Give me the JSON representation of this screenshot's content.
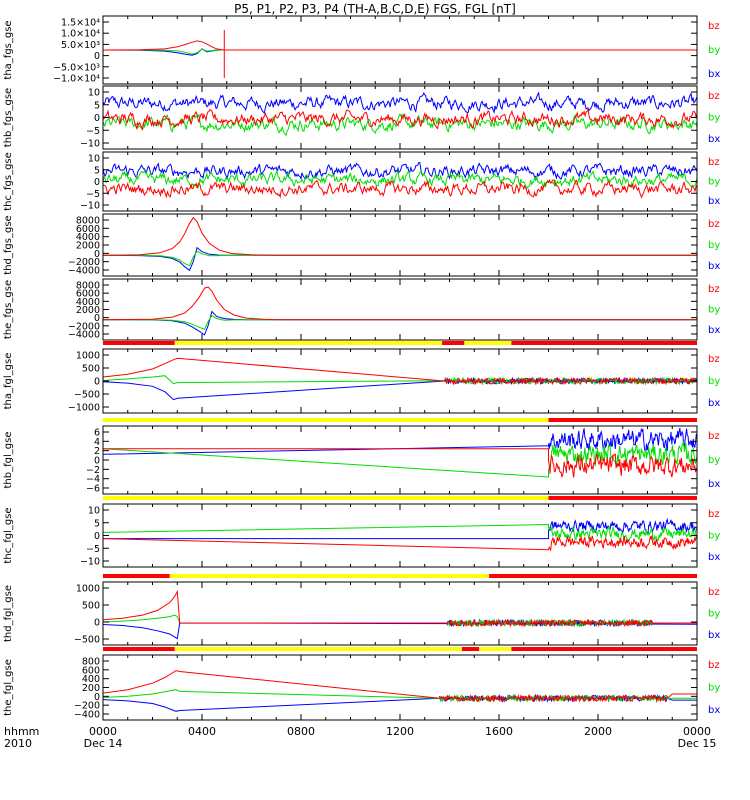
{
  "header": {
    "title": "P5, P1, P2, P3, P4 (TH-A,B,C,D,E) FGS, FGL [nT]"
  },
  "time_axis": {
    "ticks": [
      {
        "value": "0000",
        "sub": "Dec 14"
      },
      {
        "value": "0400",
        "sub": ""
      },
      {
        "value": "0800",
        "sub": ""
      },
      {
        "value": "1200",
        "sub": ""
      },
      {
        "value": "1600",
        "sub": ""
      },
      {
        "value": "2000",
        "sub": ""
      },
      {
        "value": "0000",
        "sub": "Dec 15"
      }
    ],
    "label_top": "hhmm",
    "label_bottom": "2010"
  },
  "colors": {
    "bx": "#0000ff",
    "by": "#00dd00",
    "bz": "#ff0000",
    "flag_yellow": "#ffff00",
    "flag_red": "#ff0000"
  },
  "chart_data": [
    {
      "type": "line",
      "ylabel": "tha_fgs_gse",
      "ylim": [
        -15000,
        15000
      ],
      "yticks": [
        "1.5×10⁴",
        "1.0×10⁴",
        "5.0×10³",
        "0",
        "−5.0×10³",
        "−1.0×10⁴"
      ],
      "legend": [
        "bz",
        "by",
        "bx"
      ],
      "x_hours": [
        0,
        1.5,
        2.5,
        3.0,
        3.3,
        3.6,
        3.8,
        4.0,
        4.2,
        4.4,
        4.6,
        4.8,
        5.0,
        6.0,
        9.0,
        24.0
      ],
      "series": [
        {
          "name": "bz",
          "values": [
            0,
            100,
            500,
            1400,
            2400,
            3400,
            4000,
            3600,
            2600,
            1400,
            500,
            150,
            0,
            0,
            0,
            0
          ]
        },
        {
          "name": "by",
          "values": [
            0,
            0,
            -100,
            -400,
            -1000,
            -1800,
            -1200,
            300,
            -500,
            -200,
            0,
            0,
            0,
            0,
            0,
            0
          ]
        },
        {
          "name": "bx",
          "values": [
            0,
            -100,
            -500,
            -1200,
            -1800,
            -2300,
            -1600,
            500,
            -800,
            -400,
            -100,
            0,
            0,
            0,
            0,
            0
          ]
        }
      ],
      "spike_x_hour": 4.9
    },
    {
      "type": "line",
      "ylabel": "thb_fgs_gse",
      "ylim": [
        -10,
        10
      ],
      "yticks": [
        "10",
        "5",
        "0",
        "−5",
        "−10"
      ],
      "legend": [
        "bz",
        "by",
        "bx"
      ],
      "style": "noisy",
      "means": {
        "bx": 4.5,
        "by": -2.0,
        "bz": -0.5
      },
      "x_hours_range": [
        0,
        24
      ]
    },
    {
      "type": "line",
      "ylabel": "thc_fgs_gse",
      "ylim": [
        -10,
        10
      ],
      "yticks": [
        "10",
        "5",
        "0",
        "−5",
        "−10"
      ],
      "legend": [
        "bz",
        "by",
        "bx"
      ],
      "style": "noisy",
      "means": {
        "bx": 3.5,
        "by": 0.5,
        "bz": -2.5
      },
      "x_hours_range": [
        0,
        24
      ]
    },
    {
      "type": "line",
      "ylabel": "thd_fgs_gse",
      "ylim": [
        -4000,
        8000
      ],
      "yticks": [
        "8000",
        "6000",
        "4000",
        "2000",
        "0",
        "−2000",
        "−4000"
      ],
      "legend": [
        "bz",
        "by",
        "bx"
      ],
      "x_hours": [
        0,
        1.5,
        2.3,
        2.8,
        3.1,
        3.3,
        3.5,
        3.65,
        3.8,
        4.0,
        4.3,
        4.7,
        5.2,
        6.0,
        7.0,
        24.0
      ],
      "series": [
        {
          "name": "bz",
          "values": [
            0,
            100,
            500,
            1300,
            2600,
            4200,
            6200,
            7300,
            6500,
            4300,
            2300,
            1000,
            350,
            100,
            0,
            0
          ]
        },
        {
          "name": "by",
          "values": [
            0,
            0,
            -100,
            -400,
            -900,
            -1600,
            -2000,
            -300,
            800,
            300,
            -100,
            -50,
            0,
            0,
            0,
            0
          ]
        },
        {
          "name": "bx",
          "values": [
            0,
            -50,
            -200,
            -600,
            -1300,
            -2200,
            -2900,
            -1200,
            1500,
            700,
            200,
            50,
            0,
            0,
            0,
            0
          ]
        }
      ]
    },
    {
      "type": "line",
      "ylabel": "the_fgs_gse",
      "ylim": [
        -4000,
        8000
      ],
      "yticks": [
        "8000",
        "6000",
        "4000",
        "2000",
        "0",
        "−2000",
        "−4000"
      ],
      "legend": [
        "bz",
        "by",
        "bx"
      ],
      "x_hours": [
        0,
        2.0,
        2.8,
        3.3,
        3.6,
        3.9,
        4.1,
        4.25,
        4.4,
        4.6,
        4.9,
        5.3,
        5.8,
        6.5,
        7.0,
        24.0
      ],
      "series": [
        {
          "name": "bz",
          "values": [
            0,
            100,
            500,
            1300,
            2600,
            4500,
            6200,
            6400,
            5600,
            3800,
            2000,
            900,
            300,
            100,
            0,
            0
          ]
        },
        {
          "name": "by",
          "values": [
            0,
            0,
            -100,
            -400,
            -900,
            -1500,
            -1900,
            -300,
            800,
            200,
            -100,
            -50,
            0,
            0,
            0,
            0
          ]
        },
        {
          "name": "bx",
          "values": [
            0,
            -50,
            -200,
            -700,
            -1400,
            -2300,
            -3000,
            -1100,
            1600,
            600,
            200,
            50,
            0,
            0,
            0,
            0
          ]
        }
      ]
    },
    {
      "type": "line",
      "ylabel": "tha_fgl_gse",
      "ylim": [
        -1200,
        1200
      ],
      "yticks": [
        "1000",
        "500",
        "0",
        "−500",
        "−1000"
      ],
      "legend": [
        "bz",
        "by",
        "bx"
      ],
      "x_hours": [
        0,
        1.0,
        2.0,
        2.5,
        2.85,
        3.0,
        13.8,
        24.0
      ],
      "series": [
        {
          "name": "bz",
          "values": [
            150,
            250,
            450,
            650,
            800,
            850,
            0,
            50
          ]
        },
        {
          "name": "by",
          "values": [
            20,
            80,
            150,
            200,
            -100,
            -60,
            10,
            10
          ]
        },
        {
          "name": "bx",
          "values": [
            -30,
            -80,
            -200,
            -400,
            -700,
            -650,
            0,
            -30
          ]
        }
      ],
      "noisy_from_hour": 13.8,
      "flags": [
        {
          "start": 0,
          "end": 2.9,
          "c": "red"
        },
        {
          "start": 2.9,
          "end": 13.7,
          "c": "yellow"
        },
        {
          "start": 13.7,
          "end": 14.6,
          "c": "red"
        },
        {
          "start": 14.6,
          "end": 16.5,
          "c": "yellow"
        },
        {
          "start": 16.5,
          "end": 24,
          "c": "red"
        }
      ]
    },
    {
      "type": "line",
      "ylabel": "thb_fgl_gse",
      "ylim": [
        -6,
        6
      ],
      "yticks": [
        "6",
        "4",
        "2",
        "0",
        "−2",
        "−4",
        "−6"
      ],
      "legend": [
        "bz",
        "by",
        "bx"
      ],
      "style": "linear-then-noisy",
      "noisy_from_hour": 18.0,
      "linear": {
        "bz": [
          2.0,
          2.0
        ],
        "by": [
          2.0,
          -3.0
        ],
        "bx": [
          1.0,
          2.5
        ]
      },
      "means": {
        "bx": 3.5,
        "by": 1.0,
        "bz": -1.0
      },
      "flags": [
        {
          "start": 0,
          "end": 18.0,
          "c": "yellow"
        },
        {
          "start": 18.0,
          "end": 24,
          "c": "red"
        }
      ]
    },
    {
      "type": "line",
      "ylabel": "thc_fgl_gse",
      "ylim": [
        -10,
        10
      ],
      "yticks": [
        "10",
        "5",
        "0",
        "−5",
        "−10"
      ],
      "legend": [
        "bz",
        "by",
        "bx"
      ],
      "style": "linear-then-noisy",
      "noisy_from_hour": 18.0,
      "linear": {
        "bz": [
          -1.0,
          -4.5
        ],
        "by": [
          1.0,
          3.5
        ],
        "bx": [
          -1.0,
          -1.0
        ]
      },
      "means": {
        "bx": 3.0,
        "by": 0.5,
        "bz": -2.0
      },
      "flags": [
        {
          "start": 0,
          "end": 18.0,
          "c": "yellow"
        },
        {
          "start": 18.0,
          "end": 24,
          "c": "red"
        }
      ]
    },
    {
      "type": "line",
      "ylabel": "thd_fgl_gse",
      "ylim": [
        -700,
        1300
      ],
      "yticks": [
        "1000",
        "500",
        "0",
        "−500"
      ],
      "legend": [
        "bz",
        "by",
        "bx"
      ],
      "x_hours": [
        0,
        0.8,
        1.6,
        2.2,
        2.7,
        2.9,
        3.0,
        3.1,
        24.0
      ],
      "series": [
        {
          "name": "bz",
          "values": [
            100,
            150,
            250,
            400,
            650,
            850,
            1000,
            0,
            0
          ]
        },
        {
          "name": "by",
          "values": [
            30,
            60,
            100,
            150,
            200,
            250,
            200,
            0,
            0
          ]
        },
        {
          "name": "bx",
          "values": [
            -50,
            -80,
            -150,
            -250,
            -350,
            -450,
            -500,
            0,
            -40
          ]
        }
      ],
      "noisy_from_hour": 13.9,
      "noisy_to_hour": 22.2,
      "flags": [
        {
          "start": 0,
          "end": 2.7,
          "c": "red"
        },
        {
          "start": 2.7,
          "end": 15.6,
          "c": "yellow"
        },
        {
          "start": 15.6,
          "end": 24,
          "c": "red"
        }
      ]
    },
    {
      "type": "line",
      "ylabel": "the_fgl_gse",
      "ylim": [
        -500,
        1000
      ],
      "yticks": [
        "800",
        "600",
        "400",
        "200",
        "0",
        "−200",
        "−400"
      ],
      "legend": [
        "bz",
        "by",
        "bx"
      ],
      "x_hours": [
        0,
        1.0,
        2.0,
        2.5,
        2.95,
        3.1,
        13.6,
        22.8,
        23.0,
        24.0
      ],
      "series": [
        {
          "name": "bz",
          "values": [
            120,
            200,
            350,
            480,
            640,
            620,
            0,
            0,
            100,
            100
          ]
        },
        {
          "name": "by",
          "values": [
            20,
            50,
            100,
            150,
            200,
            160,
            0,
            0,
            0,
            0
          ]
        },
        {
          "name": "bx",
          "values": [
            -30,
            -60,
            -120,
            -200,
            -300,
            -280,
            0,
            0,
            -40,
            -40
          ]
        }
      ],
      "noisy_from_hour": 13.6,
      "noisy_to_hour": 22.8,
      "flags": [
        {
          "start": 0,
          "end": 2.9,
          "c": "red"
        },
        {
          "start": 2.9,
          "end": 14.5,
          "c": "yellow"
        },
        {
          "start": 14.5,
          "end": 15.2,
          "c": "red"
        },
        {
          "start": 15.2,
          "end": 16.5,
          "c": "yellow"
        },
        {
          "start": 16.5,
          "end": 24,
          "c": "red"
        }
      ]
    }
  ]
}
